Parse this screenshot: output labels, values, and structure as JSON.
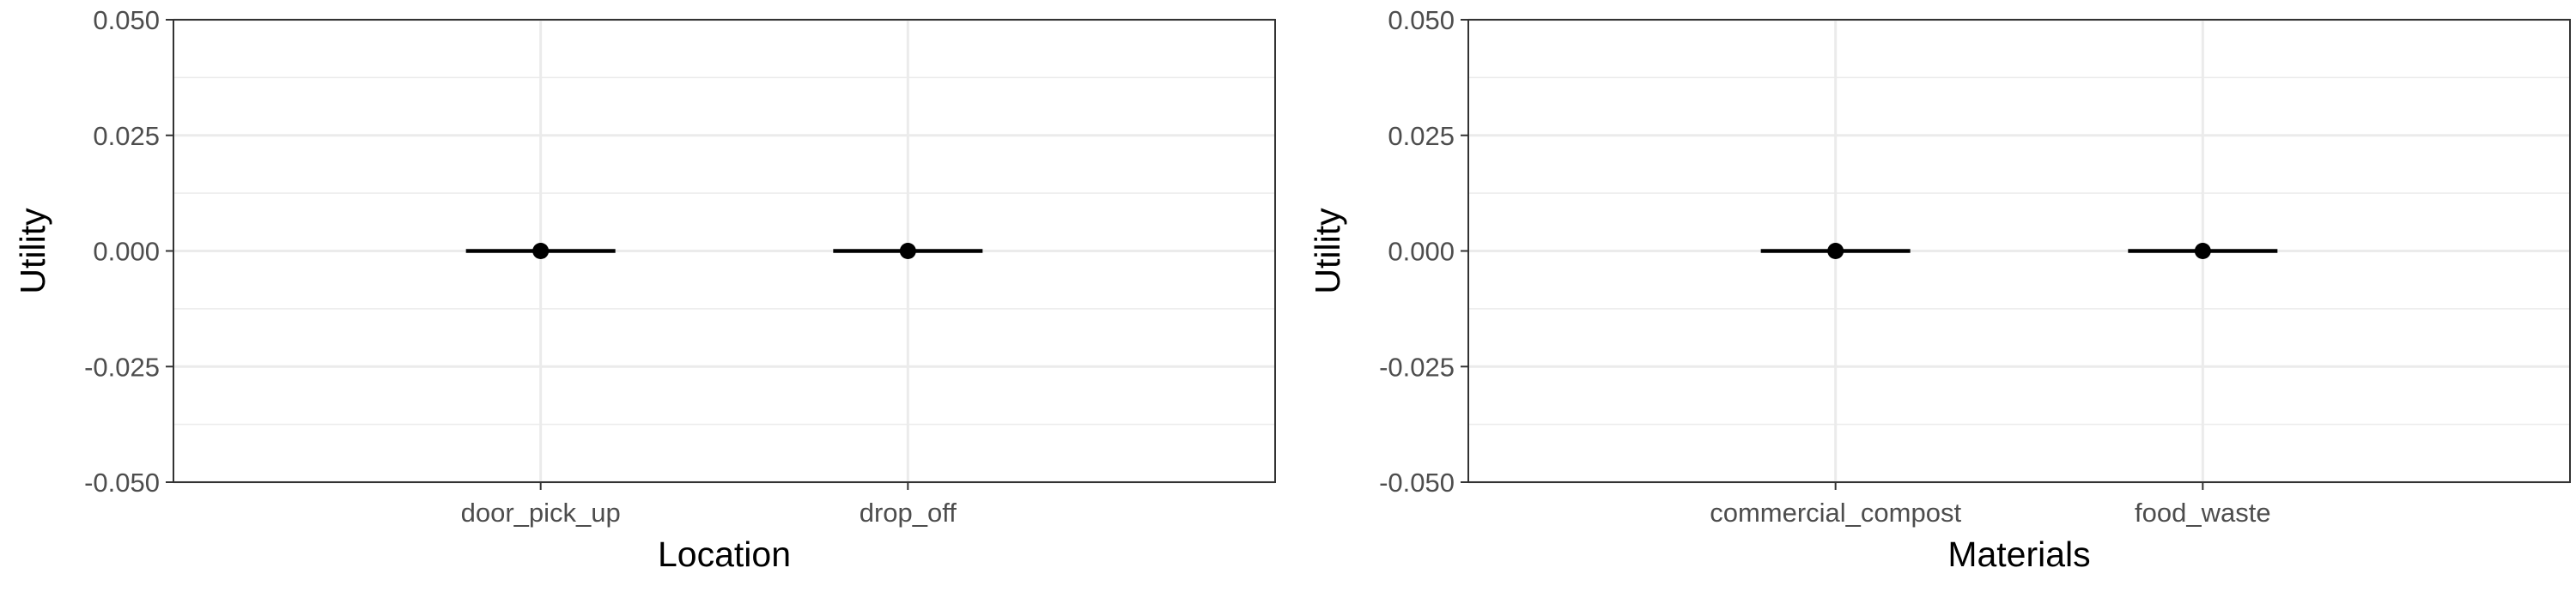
{
  "chart_data": [
    {
      "type": "scatter",
      "xlabel": "Location",
      "ylabel": "Utility",
      "categories": [
        "door_pick_up",
        "drop_off"
      ],
      "values": [
        0.0,
        0.0
      ],
      "error_low": [
        0.0,
        0.0
      ],
      "error_high": [
        0.0,
        0.0
      ],
      "ylim": [
        -0.05,
        0.05
      ],
      "yticks": [
        "-0.050",
        "-0.025",
        "0.000",
        "0.025",
        "0.050"
      ],
      "ytick_values": [
        -0.05,
        -0.025,
        0.0,
        0.025,
        0.05
      ],
      "grid": true,
      "colors": {
        "point": "#000000",
        "grid": "#ebebeb",
        "border": "#333333"
      }
    },
    {
      "type": "scatter",
      "xlabel": "Materials",
      "ylabel": "Utility",
      "categories": [
        "commercial_compost",
        "food_waste"
      ],
      "values": [
        0.0,
        0.0
      ],
      "error_low": [
        0.0,
        0.0
      ],
      "error_high": [
        0.0,
        0.0
      ],
      "ylim": [
        -0.05,
        0.05
      ],
      "yticks": [
        "-0.050",
        "-0.025",
        "0.000",
        "0.025",
        "0.050"
      ],
      "ytick_values": [
        -0.05,
        -0.025,
        0.0,
        0.025,
        0.05
      ],
      "grid": true,
      "colors": {
        "point": "#000000",
        "grid": "#ebebeb",
        "border": "#333333"
      }
    }
  ]
}
